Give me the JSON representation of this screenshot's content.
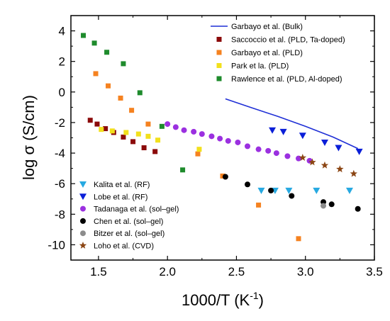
{
  "chart_data": {
    "type": "scatter",
    "xlabel": "1000/T (K",
    "xlabel_sup": "-1",
    "xlabel_close": ")",
    "ylabel": "log σ (S/cm)",
    "xlim": [
      1.3,
      3.5
    ],
    "ylim": [
      -11,
      5
    ],
    "xticks": [
      "1.5",
      "2.0",
      "2.5",
      "3.0",
      "3.5"
    ],
    "yticks": [
      "4",
      "2",
      "0",
      "-2",
      "-4",
      "-6",
      "-8",
      "-10"
    ],
    "legend_top": "top-right",
    "legend_bottom": "bottom-left",
    "series": [
      {
        "name": "Garbayo et al. (Bulk)",
        "marker": "line",
        "color": "#1f2fd6",
        "legend": "top",
        "x": [
          2.42,
          2.6,
          2.8,
          3.0,
          3.2,
          3.38
        ],
        "y": [
          -0.45,
          -1.0,
          -1.6,
          -2.25,
          -2.95,
          -3.7
        ]
      },
      {
        "name": "Saccoccio et al. (PLD, Ta-doped)",
        "marker": "square",
        "color": "#8b0a0a",
        "legend": "top",
        "x": [
          1.44,
          1.49,
          1.55,
          1.61,
          1.68,
          1.75,
          1.83,
          1.91
        ],
        "y": [
          -1.85,
          -2.1,
          -2.4,
          -2.65,
          -2.95,
          -3.25,
          -3.65,
          -3.9
        ]
      },
      {
        "name": "Garbayo et al. (PLD)",
        "marker": "square",
        "color": "#f58220",
        "legend": "top",
        "x": [
          1.48,
          1.57,
          1.66,
          1.74,
          1.86,
          2.22,
          2.4,
          2.66,
          2.95
        ],
        "y": [
          1.2,
          0.4,
          -0.4,
          -1.2,
          -2.1,
          -4.05,
          -5.5,
          -7.4,
          -9.6
        ]
      },
      {
        "name": "Park et la. (PLD)",
        "marker": "square",
        "color": "#f2e01c",
        "legend": "top",
        "x": [
          1.52,
          1.6,
          1.7,
          1.79,
          1.86,
          1.93,
          2.23
        ],
        "y": [
          -2.45,
          -2.55,
          -2.65,
          -2.75,
          -2.9,
          -3.15,
          -3.75
        ]
      },
      {
        "name": "Rawlence et al. (PLD, Al-doped)",
        "marker": "square",
        "color": "#1e8b2c",
        "legend": "top",
        "x": [
          1.39,
          1.47,
          1.56,
          1.68,
          1.8,
          1.96,
          2.11
        ],
        "y": [
          3.7,
          3.2,
          2.6,
          1.85,
          -0.05,
          -2.25,
          -5.1
        ]
      },
      {
        "name": "Kalita et al. (RF)",
        "marker": "triangle-down",
        "color": "#27a9e1",
        "legend": "bottom",
        "x": [
          2.68,
          2.78,
          2.88,
          3.08,
          3.32
        ],
        "y": [
          -6.45,
          -6.45,
          -6.45,
          -6.45,
          -6.45
        ]
      },
      {
        "name": "Lobe et al. (RF)",
        "marker": "triangle-down",
        "color": "#0b1fd8",
        "legend": "bottom",
        "x": [
          2.76,
          2.84,
          2.98,
          3.14,
          3.24,
          3.39
        ],
        "y": [
          -2.5,
          -2.6,
          -2.85,
          -3.3,
          -3.65,
          -3.9
        ]
      },
      {
        "name": "Tadanaga et al. (sol–gel)",
        "marker": "circle",
        "color": "#9b30e0",
        "legend": "bottom",
        "x": [
          2.0,
          2.06,
          2.12,
          2.19,
          2.25,
          2.32,
          2.38,
          2.44,
          2.51,
          2.58,
          2.66,
          2.73,
          2.79,
          2.87,
          2.95,
          3.03
        ],
        "y": [
          -2.1,
          -2.3,
          -2.5,
          -2.6,
          -2.75,
          -2.9,
          -3.05,
          -3.2,
          -3.3,
          -3.55,
          -3.75,
          -3.85,
          -4.0,
          -4.2,
          -4.35,
          -4.5
        ]
      },
      {
        "name": "Chen et al. (sol–gel)",
        "marker": "circle",
        "color": "#000000",
        "legend": "bottom",
        "x": [
          2.42,
          2.58,
          2.75,
          2.9,
          3.13,
          3.19,
          3.38
        ],
        "y": [
          -5.55,
          -6.05,
          -6.45,
          -6.8,
          -7.2,
          -7.35,
          -7.65
        ]
      },
      {
        "name": "Bitzer et al. (sol–gel)",
        "marker": "circle",
        "color": "#8c8c8c",
        "legend": "bottom",
        "x": [
          3.13
        ],
        "y": [
          -7.45
        ]
      },
      {
        "name": "Loho et al. (CVD)",
        "marker": "star",
        "color": "#8b4513",
        "legend": "bottom",
        "x": [
          2.98,
          3.05,
          3.14,
          3.25,
          3.35
        ],
        "y": [
          -4.3,
          -4.6,
          -4.8,
          -5.05,
          -5.35
        ]
      }
    ]
  }
}
